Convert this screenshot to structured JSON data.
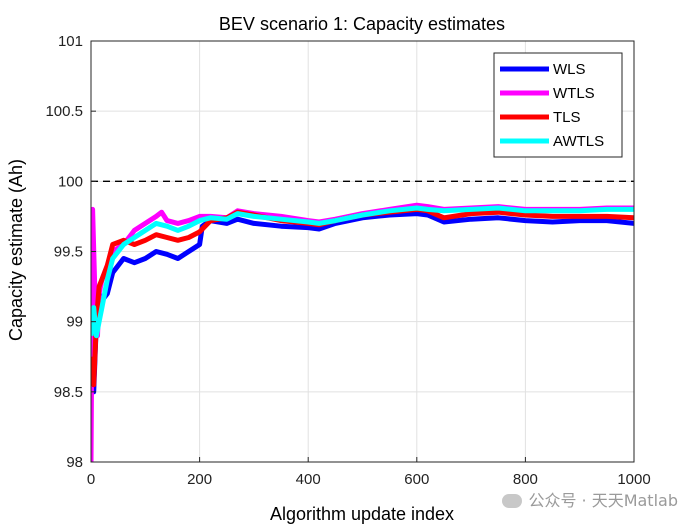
{
  "chart_data": {
    "type": "line",
    "title": "BEV scenario 1: Capacity estimates",
    "xlabel": "Algorithm update index",
    "ylabel": "Capacity estimate (Ah)",
    "xlim": [
      0,
      1000
    ],
    "ylim": [
      98,
      101
    ],
    "x_ticks": [
      "0",
      "200",
      "400",
      "600",
      "800",
      "1000"
    ],
    "y_ticks": [
      "98",
      "98.5",
      "99",
      "99.5",
      "100",
      "100.5",
      "101"
    ],
    "grid": true,
    "legend_position": "top-right",
    "reference_line": {
      "y": 100,
      "style": "dashed",
      "color": "#000000"
    },
    "series": [
      {
        "name": "WLS",
        "color": "#0000ff",
        "points": [
          [
            0,
            98.85
          ],
          [
            5,
            98.5
          ],
          [
            10,
            99.0
          ],
          [
            15,
            99.2
          ],
          [
            20,
            99.15
          ],
          [
            30,
            99.2
          ],
          [
            40,
            99.35
          ],
          [
            60,
            99.45
          ],
          [
            80,
            99.42
          ],
          [
            100,
            99.45
          ],
          [
            120,
            99.5
          ],
          [
            140,
            99.48
          ],
          [
            160,
            99.45
          ],
          [
            180,
            99.5
          ],
          [
            200,
            99.55
          ],
          [
            205,
            99.68
          ],
          [
            220,
            99.72
          ],
          [
            250,
            99.7
          ],
          [
            270,
            99.73
          ],
          [
            300,
            99.7
          ],
          [
            350,
            99.68
          ],
          [
            400,
            99.67
          ],
          [
            420,
            99.66
          ],
          [
            450,
            99.7
          ],
          [
            500,
            99.74
          ],
          [
            550,
            99.76
          ],
          [
            600,
            99.77
          ],
          [
            620,
            99.76
          ],
          [
            650,
            99.71
          ],
          [
            700,
            99.73
          ],
          [
            750,
            99.74
          ],
          [
            800,
            99.72
          ],
          [
            850,
            99.71
          ],
          [
            900,
            99.72
          ],
          [
            950,
            99.72
          ],
          [
            1000,
            99.7
          ]
        ]
      },
      {
        "name": "WTLS",
        "color": "#ff00ff",
        "points": [
          [
            0,
            98.0
          ],
          [
            3,
            99.8
          ],
          [
            8,
            99.1
          ],
          [
            12,
            98.9
          ],
          [
            15,
            99.2
          ],
          [
            20,
            99.3
          ],
          [
            30,
            99.4
          ],
          [
            40,
            99.5
          ],
          [
            60,
            99.55
          ],
          [
            80,
            99.65
          ],
          [
            100,
            99.7
          ],
          [
            120,
            99.75
          ],
          [
            130,
            99.78
          ],
          [
            140,
            99.72
          ],
          [
            160,
            99.7
          ],
          [
            180,
            99.72
          ],
          [
            200,
            99.75
          ],
          [
            220,
            99.75
          ],
          [
            250,
            99.74
          ],
          [
            270,
            99.79
          ],
          [
            300,
            99.77
          ],
          [
            350,
            99.75
          ],
          [
            400,
            99.72
          ],
          [
            420,
            99.71
          ],
          [
            450,
            99.73
          ],
          [
            500,
            99.77
          ],
          [
            550,
            99.8
          ],
          [
            600,
            99.83
          ],
          [
            620,
            99.82
          ],
          [
            650,
            99.8
          ],
          [
            700,
            99.81
          ],
          [
            750,
            99.82
          ],
          [
            800,
            99.8
          ],
          [
            850,
            99.8
          ],
          [
            900,
            99.8
          ],
          [
            950,
            99.81
          ],
          [
            1000,
            99.81
          ]
        ]
      },
      {
        "name": "TLS",
        "color": "#ff0000",
        "points": [
          [
            0,
            98.75
          ],
          [
            5,
            98.55
          ],
          [
            10,
            99.0
          ],
          [
            15,
            99.25
          ],
          [
            20,
            99.3
          ],
          [
            30,
            99.4
          ],
          [
            40,
            99.55
          ],
          [
            60,
            99.58
          ],
          [
            80,
            99.55
          ],
          [
            100,
            99.58
          ],
          [
            120,
            99.62
          ],
          [
            140,
            99.6
          ],
          [
            160,
            99.58
          ],
          [
            180,
            99.6
          ],
          [
            200,
            99.64
          ],
          [
            220,
            99.72
          ],
          [
            250,
            99.74
          ],
          [
            270,
            99.78
          ],
          [
            300,
            99.76
          ],
          [
            350,
            99.72
          ],
          [
            400,
            99.7
          ],
          [
            420,
            99.69
          ],
          [
            450,
            99.72
          ],
          [
            500,
            99.76
          ],
          [
            550,
            99.78
          ],
          [
            600,
            99.8
          ],
          [
            620,
            99.79
          ],
          [
            650,
            99.74
          ],
          [
            700,
            99.77
          ],
          [
            750,
            99.78
          ],
          [
            800,
            99.76
          ],
          [
            850,
            99.75
          ],
          [
            900,
            99.75
          ],
          [
            950,
            99.75
          ],
          [
            1000,
            99.74
          ]
        ]
      },
      {
        "name": "AWTLS",
        "color": "#00ffff",
        "points": [
          [
            0,
            98.9
          ],
          [
            5,
            99.1
          ],
          [
            10,
            98.9
          ],
          [
            15,
            99.0
          ],
          [
            20,
            99.1
          ],
          [
            30,
            99.3
          ],
          [
            40,
            99.45
          ],
          [
            60,
            99.55
          ],
          [
            80,
            99.6
          ],
          [
            100,
            99.65
          ],
          [
            120,
            99.7
          ],
          [
            140,
            99.68
          ],
          [
            160,
            99.65
          ],
          [
            180,
            99.68
          ],
          [
            200,
            99.72
          ],
          [
            220,
            99.74
          ],
          [
            250,
            99.73
          ],
          [
            270,
            99.77
          ],
          [
            300,
            99.75
          ],
          [
            350,
            99.73
          ],
          [
            400,
            99.71
          ],
          [
            420,
            99.7
          ],
          [
            450,
            99.72
          ],
          [
            500,
            99.76
          ],
          [
            550,
            99.79
          ],
          [
            600,
            99.81
          ],
          [
            620,
            99.8
          ],
          [
            650,
            99.79
          ],
          [
            700,
            99.8
          ],
          [
            750,
            99.81
          ],
          [
            800,
            99.79
          ],
          [
            850,
            99.79
          ],
          [
            900,
            99.79
          ],
          [
            950,
            99.8
          ],
          [
            1000,
            99.8
          ]
        ]
      }
    ]
  },
  "watermark": {
    "text": "公众号 · 天天Matlab"
  }
}
